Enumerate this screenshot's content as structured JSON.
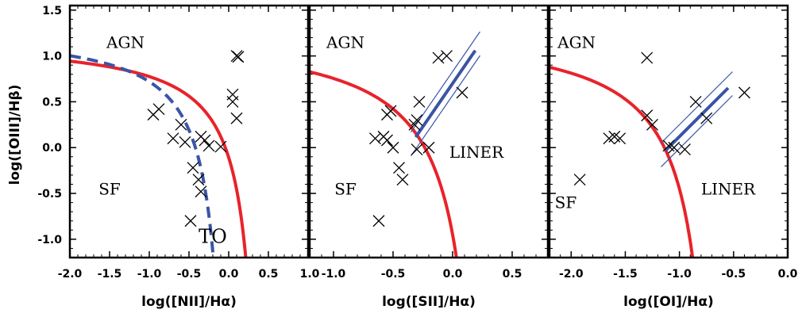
{
  "chart_data": [
    {
      "type": "scatter",
      "xlabel": "log([NII]/Hα)",
      "ylabel": "log([OIII]/Hβ)",
      "xlim": [
        -2.0,
        1.0
      ],
      "ylim": [
        -1.2,
        1.55
      ],
      "xticks": [
        "-2.0",
        "-1.5",
        "-1.0",
        "-0.5",
        "0.0",
        "0.5",
        "1.0"
      ],
      "yticks": [
        "-1.0",
        "-0.5",
        "0.0",
        "0.5",
        "1.0",
        "1.5"
      ],
      "region_labels": [
        {
          "text": "AGN",
          "x": -1.3,
          "y": 1.15
        },
        {
          "text": "SF",
          "x": -1.5,
          "y": -0.45
        },
        {
          "text": "TO",
          "x": -0.2,
          "y": -0.98
        }
      ],
      "curves": [
        {
          "kind": "kewley",
          "color": "#e8232a",
          "dash": false
        },
        {
          "kind": "kauffmann",
          "color": "#3a54a6",
          "dash": true
        }
      ],
      "points": [
        [
          -0.95,
          0.36
        ],
        [
          -0.88,
          0.42
        ],
        [
          -0.6,
          0.25
        ],
        [
          -0.7,
          0.1
        ],
        [
          -0.55,
          0.06
        ],
        [
          -0.45,
          -0.22
        ],
        [
          -0.38,
          -0.35
        ],
        [
          -0.35,
          -0.48
        ],
        [
          -0.35,
          0.12
        ],
        [
          -0.3,
          0.08
        ],
        [
          -0.25,
          0.02
        ],
        [
          -0.1,
          0.01
        ],
        [
          0.05,
          0.5
        ],
        [
          0.05,
          0.58
        ],
        [
          0.1,
          0.32
        ],
        [
          0.1,
          1.0
        ],
        [
          0.12,
          0.99
        ],
        [
          -0.48,
          -0.8
        ]
      ]
    },
    {
      "type": "scatter",
      "xlabel": "log([SII]/Hα)",
      "ylabel": "",
      "xlim": [
        -1.2,
        0.8
      ],
      "ylim": [
        -1.2,
        1.55
      ],
      "xticks": [
        "-1.0",
        "-0.5",
        "0.0",
        "0.5"
      ],
      "region_labels": [
        {
          "text": "AGN",
          "x": -0.9,
          "y": 1.15
        },
        {
          "text": "SF",
          "x": -0.9,
          "y": -0.45
        },
        {
          "text": "LINER",
          "x": 0.2,
          "y": -0.05
        }
      ],
      "curves": [
        {
          "kind": "kewley",
          "color": "#e8232a",
          "dash": false
        },
        {
          "kind": "liner_line",
          "color": "#3a54a6",
          "dash": false
        }
      ],
      "points": [
        [
          -0.65,
          0.1
        ],
        [
          -0.58,
          0.12
        ],
        [
          -0.55,
          0.08
        ],
        [
          -0.5,
          0.0
        ],
        [
          -0.55,
          0.36
        ],
        [
          -0.52,
          0.4
        ],
        [
          -0.45,
          -0.22
        ],
        [
          -0.42,
          -0.35
        ],
        [
          -0.62,
          -0.8
        ],
        [
          -0.32,
          0.25
        ],
        [
          -0.28,
          0.5
        ],
        [
          -0.3,
          0.3
        ],
        [
          -0.3,
          -0.02
        ],
        [
          -0.2,
          0.0
        ],
        [
          -0.12,
          0.98
        ],
        [
          -0.05,
          1.0
        ],
        [
          0.08,
          0.6
        ]
      ]
    },
    {
      "type": "scatter",
      "xlabel": "log([OI]/Hα)",
      "ylabel": "",
      "xlim": [
        -2.2,
        0.0
      ],
      "ylim": [
        -1.2,
        1.55
      ],
      "xticks": [
        "-2.0",
        "-1.5",
        "-1.0",
        "-0.5",
        "0.0"
      ],
      "region_labels": [
        {
          "text": "AGN",
          "x": -1.95,
          "y": 1.15
        },
        {
          "text": "SF",
          "x": -2.05,
          "y": -0.6
        },
        {
          "text": "LINER",
          "x": -0.55,
          "y": -0.45
        }
      ],
      "curves": [
        {
          "kind": "kewley",
          "color": "#e8232a",
          "dash": false
        },
        {
          "kind": "liner_line",
          "color": "#3a54a6",
          "dash": false
        }
      ],
      "points": [
        [
          -1.92,
          -0.35
        ],
        [
          -1.65,
          0.1
        ],
        [
          -1.6,
          0.12
        ],
        [
          -1.55,
          0.1
        ],
        [
          -1.3,
          0.98
        ],
        [
          -1.3,
          0.35
        ],
        [
          -1.25,
          0.25
        ],
        [
          -1.1,
          0.02
        ],
        [
          -1.05,
          0.0
        ],
        [
          -0.95,
          -0.02
        ],
        [
          -0.85,
          0.5
        ],
        [
          -0.75,
          0.32
        ],
        [
          -0.4,
          0.6
        ]
      ]
    }
  ]
}
